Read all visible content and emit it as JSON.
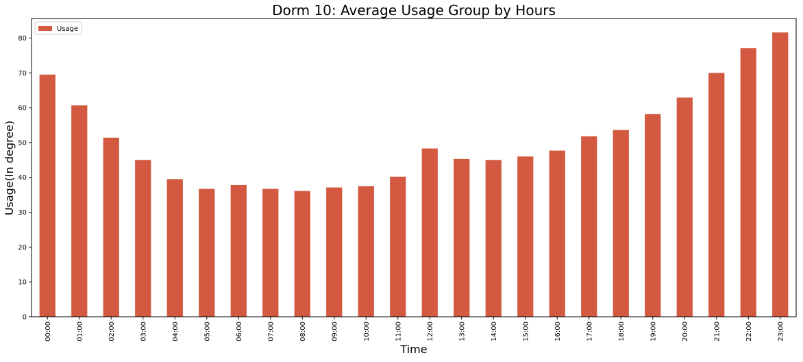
{
  "chart_data": {
    "type": "bar",
    "title": "Dorm 10: Average Usage Group by Hours",
    "xlabel": "Time",
    "ylabel": "Usage(In degree)",
    "categories": [
      "00:00",
      "01:00",
      "02:00",
      "03:00",
      "04:00",
      "05:00",
      "06:00",
      "07:00",
      "08:00",
      "09:00",
      "10:00",
      "11:00",
      "12:00",
      "13:00",
      "14:00",
      "15:00",
      "16:00",
      "17:00",
      "18:00",
      "19:00",
      "20:00",
      "21:00",
      "22:00",
      "23:00"
    ],
    "series": [
      {
        "name": "Usage",
        "color": "#d35940",
        "values": [
          69.5,
          60.7,
          51.4,
          45.0,
          39.5,
          36.7,
          37.8,
          36.7,
          36.1,
          37.1,
          37.5,
          40.2,
          48.3,
          45.3,
          45.0,
          46.0,
          47.7,
          51.8,
          53.6,
          58.2,
          62.9,
          70.0,
          77.1,
          81.6
        ]
      }
    ],
    "ylim": [
      0,
      85.6
    ],
    "yticks": [
      0,
      10,
      20,
      30,
      40,
      50,
      60,
      70,
      80
    ],
    "grid": false,
    "legend": "top-left"
  }
}
